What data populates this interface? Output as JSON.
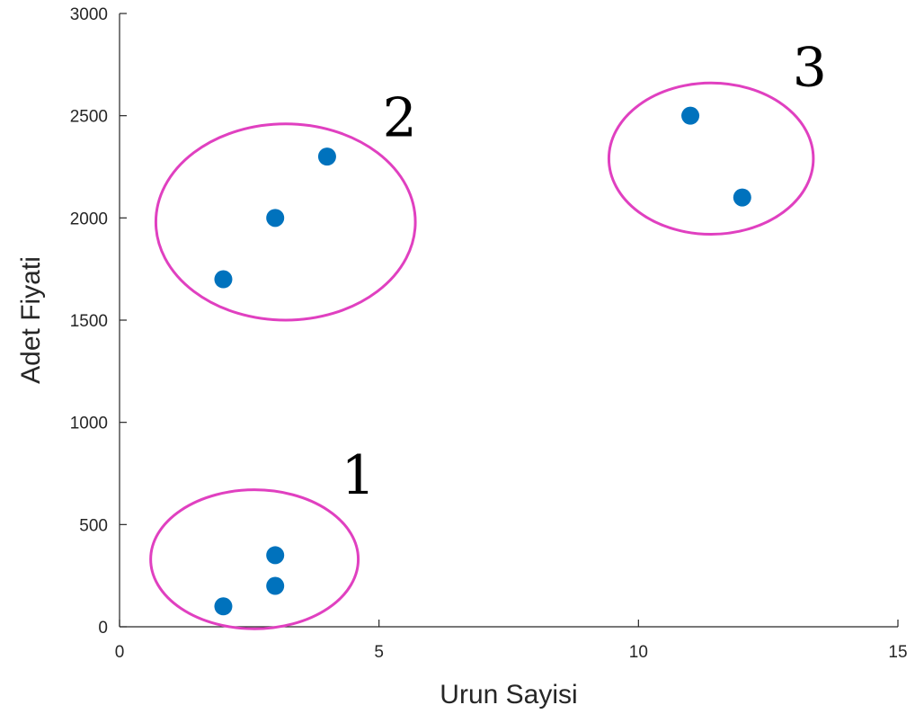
{
  "chart_data": {
    "type": "scatter",
    "title": "",
    "xlabel": "Urun Sayisi",
    "ylabel": "Adet Fiyati",
    "xlim": [
      0,
      15
    ],
    "ylim": [
      0,
      3000
    ],
    "xticks": [
      0,
      5,
      10,
      15
    ],
    "yticks": [
      0,
      500,
      1000,
      1500,
      2000,
      2500,
      3000
    ],
    "x_tick_labels": [
      "0",
      "5",
      "10",
      "15"
    ],
    "y_tick_labels": [
      "0",
      "500",
      "1000",
      "1500",
      "2000",
      "2500",
      "3000"
    ],
    "grid": false,
    "legend": "none",
    "marker_color": "#0072BD",
    "cluster_color": "#E040C0",
    "points": [
      {
        "x": 2,
        "y": 100
      },
      {
        "x": 3,
        "y": 200
      },
      {
        "x": 3,
        "y": 350
      },
      {
        "x": 2,
        "y": 1700
      },
      {
        "x": 3,
        "y": 2000
      },
      {
        "x": 4,
        "y": 2300
      },
      {
        "x": 11,
        "y": 2500
      },
      {
        "x": 12,
        "y": 2100
      }
    ],
    "clusters": [
      {
        "label": "1",
        "cx": 2.6,
        "cy": 330,
        "rx": 2.0,
        "ry": 340,
        "label_x": 4.6,
        "label_y": 650
      },
      {
        "label": "2",
        "cx": 3.2,
        "cy": 1980,
        "rx": 2.5,
        "ry": 480,
        "label_x": 5.4,
        "label_y": 2400
      },
      {
        "label": "3",
        "cx": 11.4,
        "cy": 2290,
        "rx": 1.97,
        "ry": 370,
        "label_x": 13.3,
        "label_y": 2645
      }
    ]
  }
}
